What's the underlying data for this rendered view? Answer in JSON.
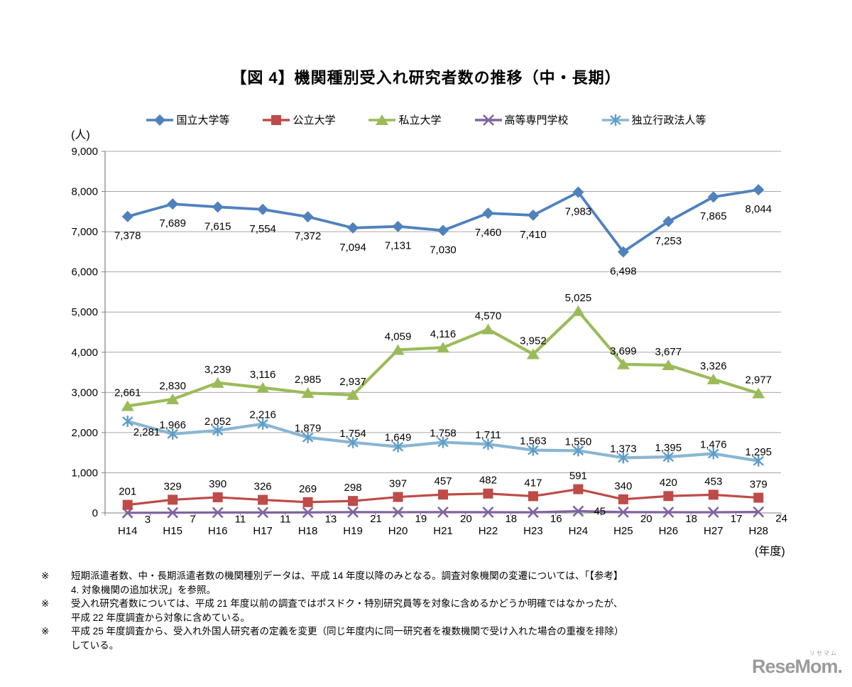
{
  "chart_data": {
    "type": "line",
    "title": "【図 4】機関種別受入れ研究者数の推移（中・長期）",
    "y_unit": "(人)",
    "x_unit": "(年度)",
    "categories": [
      "H14",
      "H15",
      "H16",
      "H17",
      "H18",
      "H19",
      "H20",
      "H21",
      "H22",
      "H23",
      "H24",
      "H25",
      "H26",
      "H27",
      "H28"
    ],
    "ylim": [
      0,
      9000
    ],
    "y_tick_step": 1000,
    "grid": true,
    "legend_position": "top",
    "series": [
      {
        "key": "national-universities",
        "name": "国立大学等",
        "marker": "diamond",
        "color": "#4F81BD",
        "label_position": "below",
        "values": [
          7378,
          7689,
          7615,
          7554,
          7372,
          7094,
          7131,
          7030,
          7460,
          7410,
          7983,
          6498,
          7253,
          7865,
          8044
        ]
      },
      {
        "key": "public-universities",
        "name": "公立大学",
        "marker": "square",
        "color": "#BE4B48",
        "label_position": "above",
        "values": [
          201,
          329,
          390,
          326,
          269,
          298,
          397,
          457,
          482,
          417,
          591,
          340,
          420,
          453,
          379
        ]
      },
      {
        "key": "private-universities",
        "name": "私立大学",
        "marker": "triangle",
        "color": "#9BBB59",
        "label_position": "above",
        "values": [
          2661,
          2830,
          3239,
          3116,
          2985,
          2937,
          4059,
          4116,
          4570,
          3952,
          5025,
          3699,
          3677,
          3326,
          2977
        ]
      },
      {
        "key": "technical-colleges",
        "name": "高等専門学校",
        "marker": "x",
        "color": "#7F63A1",
        "label_position": "right-below",
        "values": [
          3,
          7,
          11,
          11,
          13,
          21,
          19,
          20,
          18,
          16,
          45,
          20,
          18,
          17,
          24
        ]
      },
      {
        "key": "independent-agencies",
        "name": "独立行政法人等",
        "marker": "asterisk",
        "color": "#8AB6D2",
        "marker_color": "#5E9DC8",
        "label_position": "above-tight",
        "values": [
          2281,
          1966,
          2052,
          2216,
          1879,
          1754,
          1649,
          1758,
          1711,
          1563,
          1550,
          1373,
          1395,
          1476,
          1295
        ]
      }
    ]
  },
  "notes": {
    "bullet": "※",
    "items": [
      {
        "lines": [
          "短期派遣者数、中・長期派遣者数の機関種別データは、平成 14 年度以降のみとなる。調査対象機関の変遷については、「【参考】",
          "4. 対象機関の追加状況」を参照。"
        ]
      },
      {
        "lines": [
          "受入れ研究者数については、平成 21 年度以前の調査ではポスドク・特別研究員等を対象に含めるかどうか明確ではなかったが、",
          "平成 22 年度調査から対象に含めている。"
        ]
      },
      {
        "lines": [
          "平成 25 年度調査から、受入れ外国人研究者の定義を変更（同じ年度内に同一研究者を複数機関で受け入れた場合の重複を排除）",
          "している。"
        ]
      }
    ]
  },
  "logo": {
    "text": "ReseMom.",
    "ruby": "リセマム"
  }
}
